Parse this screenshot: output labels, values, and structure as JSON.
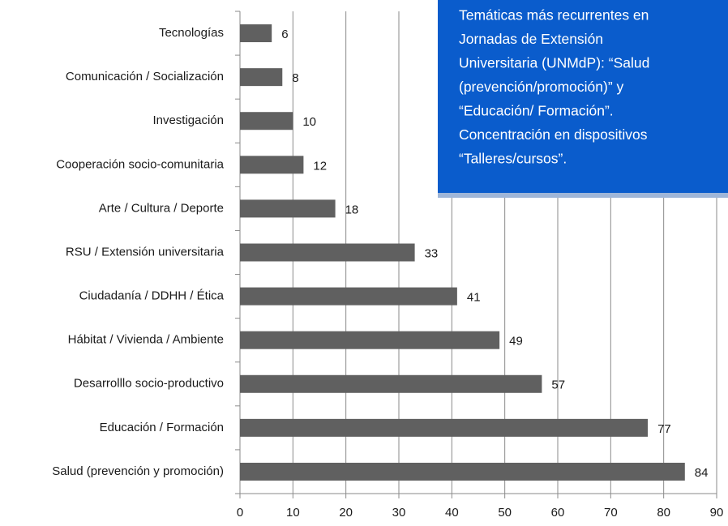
{
  "chart_data": {
    "type": "barh",
    "categories": [
      "Tecnologías",
      "Comunicación / Socialización",
      "Investigación",
      "Cooperación socio-comunitaria",
      "Arte / Cultura / Deporte",
      "RSU / Extensión universitaria",
      "Ciudadanía / DDHH / Ética",
      "Hábitat / Vivienda / Ambiente",
      "Desarrolllo socio-productivo",
      "Educación / Formación",
      "Salud (prevención y promoción)"
    ],
    "values": [
      6,
      8,
      10,
      12,
      18,
      33,
      41,
      49,
      57,
      77,
      84
    ],
    "color": "#606060",
    "xlim": [
      0,
      90
    ],
    "xticks": [
      0,
      10,
      20,
      30,
      40,
      50,
      60,
      70,
      80,
      90
    ],
    "grid": true,
    "annotation": [
      "Temáticas más recurrentes en",
      "Jornadas de Extensión",
      "Universitaria (UNMdP): “Salud",
      "(prevención/promoción)”  y",
      "“Educación/ Formación”.",
      "Concentración en dispositivos",
      "“Talleres/cursos”."
    ],
    "annotation_color": "#0a5ccc"
  }
}
